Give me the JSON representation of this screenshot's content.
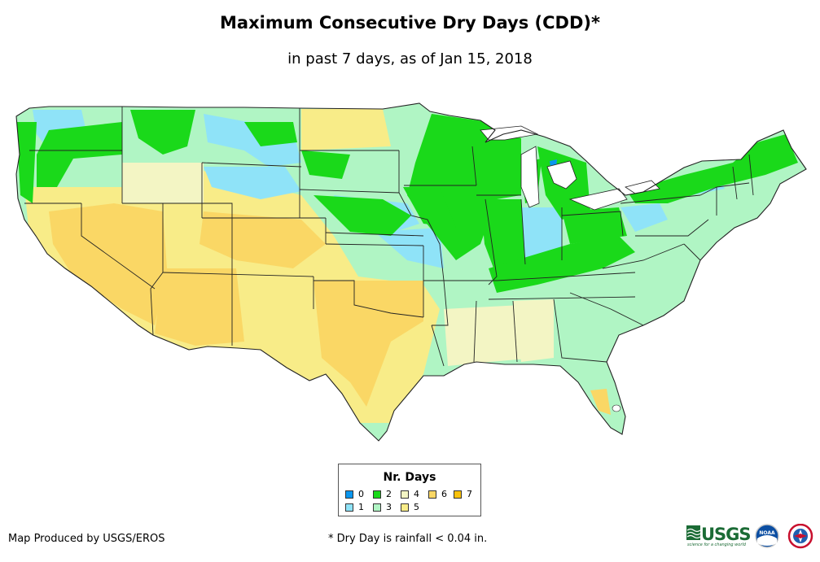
{
  "title": "Maximum Consecutive Dry Days (CDD)*",
  "subtitle": "in past 7 days, as of Jan 15, 2018",
  "legend": {
    "title": "Nr. Days",
    "items": [
      {
        "label": "0",
        "color": "#0a96ee"
      },
      {
        "label": "1",
        "color": "#8fe3f8"
      },
      {
        "label": "2",
        "color": "#1ad91a"
      },
      {
        "label": "3",
        "color": "#b0f5c4"
      },
      {
        "label": "4",
        "color": "#f3f5c4"
      },
      {
        "label": "5",
        "color": "#f8ec88"
      },
      {
        "label": "6",
        "color": "#fad765"
      },
      {
        "label": "7",
        "color": "#f9c20c"
      }
    ]
  },
  "credit": "Map Produced by USGS/EROS",
  "footnote": "* Dry Day is rainfall < 0.04 in.",
  "logos": {
    "usgs_text": "USGS",
    "usgs_tagline": "science for a changing world",
    "noaa_text": "NOAA"
  }
}
